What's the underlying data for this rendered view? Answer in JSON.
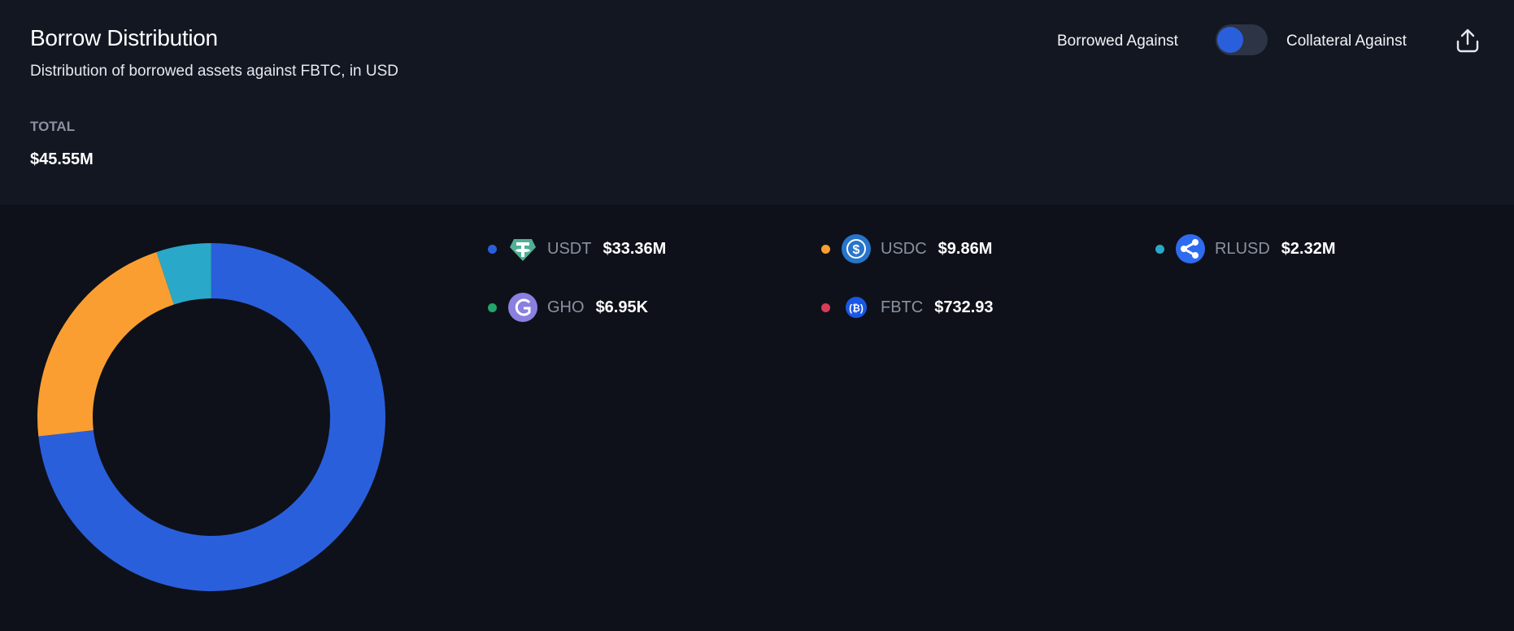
{
  "header": {
    "title": "Borrow Distribution",
    "subtitle": "Distribution of borrowed assets against FBTC, in USD",
    "total_label": "TOTAL",
    "total_value": "$45.55M",
    "toggle_left_label": "Borrowed Against",
    "toggle_right_label": "Collateral Against",
    "toggle_state": "Borrowed Against",
    "export_icon": "share-upload-icon"
  },
  "colors": {
    "accent": "#2a5fdc",
    "header_bg": "#131722",
    "body_bg": "#0e1119"
  },
  "chart_data": {
    "type": "pie",
    "variant": "donut",
    "unit": "USD",
    "legend_placement": "right",
    "categories": [
      "USDT",
      "USDC",
      "RLUSD",
      "GHO",
      "FBTC"
    ],
    "values": [
      33360000,
      9860000,
      2320000,
      6950,
      732.93
    ],
    "value_labels": [
      "$33.36M",
      "$9.86M",
      "$2.32M",
      "$6.95K",
      "$732.93"
    ],
    "colors": [
      "#2a5fdc",
      "#fa9e32",
      "#2aa8c9",
      "#22a56b",
      "#d83c5a"
    ],
    "icons": [
      "tether-icon",
      "usdc-icon",
      "ripple-icon",
      "gho-icon",
      "fbtc-icon"
    ]
  }
}
